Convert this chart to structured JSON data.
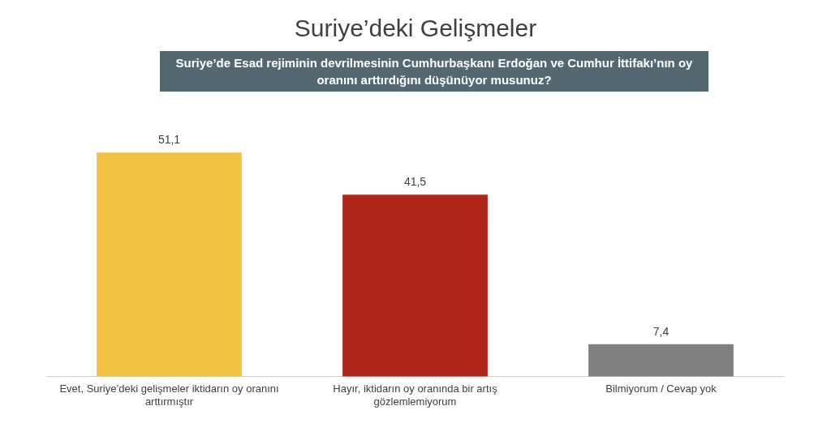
{
  "chart_data": {
    "type": "bar",
    "title": "Suriye’deki Gelişmeler",
    "subtitle": "Suriye’de Esad rejiminin devrilmesinin Cumhurbaşkanı Erdoğan ve Cumhur İttifakı’nın oy oranını arttırdığını düşünüyor musunuz?",
    "categories": [
      "Evet, Suriye’deki gelişmeler iktidarın oy oranını arttırmıştır",
      "Hayır, iktidarın oy oranında bir artış gözlemlemiyorum",
      "Bilmiyorum / Cevap yok"
    ],
    "values": [
      51.1,
      41.5,
      7.4
    ],
    "colors": [
      "#f2c244",
      "#b0261b",
      "#808080"
    ],
    "value_labels": [
      "51,1",
      "41,5",
      "7,4"
    ],
    "grid": false,
    "legend": false
  }
}
